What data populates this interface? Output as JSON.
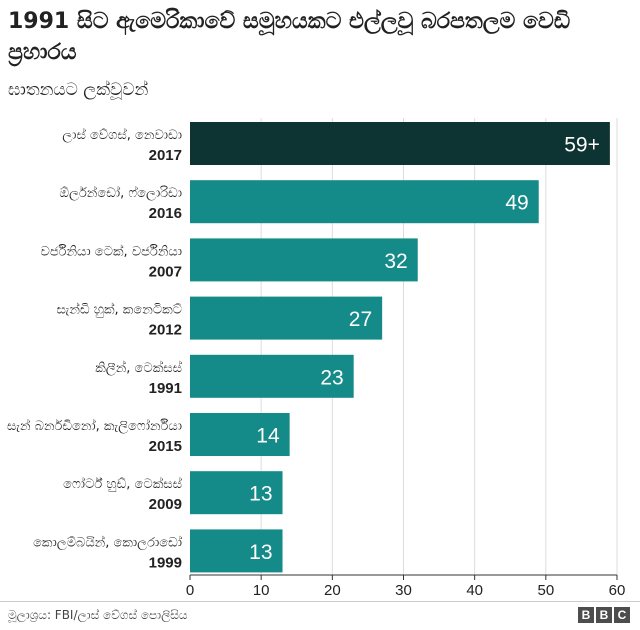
{
  "header": {
    "title": "1991 සිට ඇමෙරිකාවේ සමූහයකට එල්ලවූ බරපතලම වෙඩි ප්‍රහාරය",
    "subtitle": "ඝාතනයට ලක්වූවන්"
  },
  "chart_data": {
    "type": "bar",
    "orientation": "horizontal",
    "categories": [
      {
        "place": "ලාස් වේගස්, නෙවාඩා",
        "year": "2017"
      },
      {
        "place": "ඕර්ලන්ඩෝ, ෆ්ලොරිඩා",
        "year": "2016"
      },
      {
        "place": "වර්ජිනියා ටෙක්, වර්ජිනියා",
        "year": "2007"
      },
      {
        "place": "සැන්ඩි හුක්, කනෙටිකට්",
        "year": "2012"
      },
      {
        "place": "කිලීන්, ටෙක්සස්",
        "year": "1991"
      },
      {
        "place": "සැන් බර්නඩිනෝ, කැලිෆෝර්නියා",
        "year": "2015"
      },
      {
        "place": "ෆෝර්ට් හුඩ්, ටෙක්සස්",
        "year": "2009"
      },
      {
        "place": "කොලම්බයින්, කොලරාඩෝ",
        "year": "1999"
      }
    ],
    "values": [
      59,
      49,
      32,
      27,
      23,
      14,
      13,
      13
    ],
    "value_labels": [
      "59+",
      "49",
      "32",
      "27",
      "23",
      "14",
      "13",
      "13"
    ],
    "xlim": [
      0,
      60
    ],
    "xticks": [
      "0",
      "10",
      "20",
      "30",
      "40",
      "50",
      "60"
    ],
    "grid": true,
    "colors": {
      "highlight": "#0d3433",
      "bar": "#148a89",
      "grid": "#dcdcdc",
      "axis": "#333333"
    },
    "highlight_index": 0
  },
  "footer": {
    "source": "මූලාශ්‍රය: FBI/ලාස් වේගස් පොලිසිය",
    "logo_letters": [
      "B",
      "B",
      "C"
    ]
  }
}
